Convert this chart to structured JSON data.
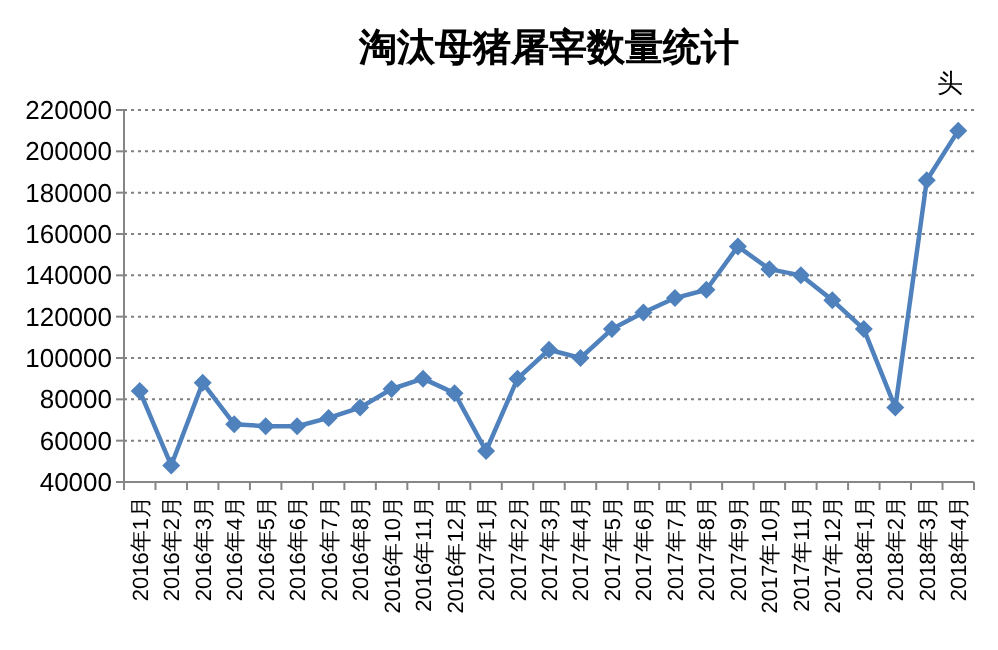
{
  "chart_data": {
    "type": "line",
    "title": "淘汰母猪屠宰数量统计",
    "annotations": [
      "头"
    ],
    "categories": [
      "2016年1月",
      "2016年2月",
      "2016年3月",
      "2016年4月",
      "2016年5月",
      "2016年6月",
      "2016年7月",
      "2016年8月",
      "2016年10月",
      "2016年11月",
      "2016年12月",
      "2017年1月",
      "2017年2月",
      "2017年3月",
      "2017年4月",
      "2017年5月",
      "2017年6月",
      "2017年7月",
      "2017年8月",
      "2017年9月",
      "2017年10月",
      "2017年11月",
      "2017年12月",
      "2018年1月",
      "2018年2月",
      "2018年3月",
      "2018年4月"
    ],
    "series": [
      {
        "color": "#4f81bd",
        "values": [
          84000,
          48000,
          88000,
          68000,
          67000,
          67000,
          71000,
          76000,
          85000,
          90000,
          83000,
          55000,
          90000,
          104000,
          100000,
          114000,
          122000,
          129000,
          133000,
          154000,
          143000,
          140000,
          128000,
          114000,
          76000,
          186000,
          210000
        ]
      }
    ],
    "ylim": [
      40000,
      220000
    ],
    "yticks": [
      40000,
      60000,
      80000,
      100000,
      120000,
      140000,
      160000,
      180000,
      200000,
      220000
    ],
    "grid": "y",
    "marker": "diamond",
    "line_style": "solid"
  }
}
